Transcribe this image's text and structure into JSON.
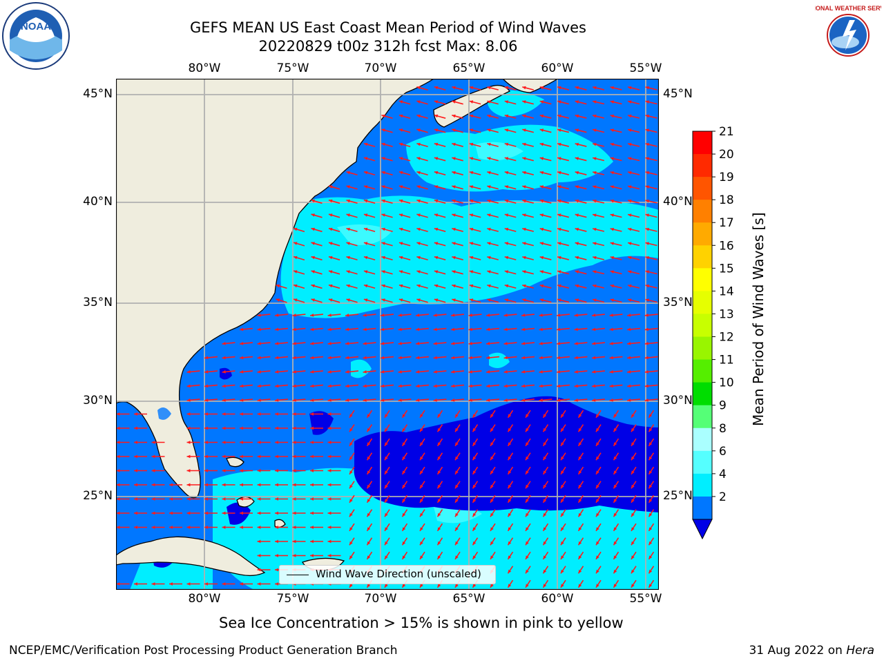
{
  "title": {
    "line1": "GEFS MEAN US East Coast Mean Period of Wind Waves",
    "line2": "20220829 t00z 312h fcst   Max: 8.06"
  },
  "map": {
    "lon_ticks_top": [
      "80°W",
      "75°W",
      "70°W",
      "65°W",
      "60°W",
      "55°W"
    ],
    "lon_ticks_bottom": [
      "80°W",
      "75°W",
      "70°W",
      "65°W",
      "60°W",
      "55°W"
    ],
    "lat_ticks_left": [
      "45°N",
      "40°N",
      "35°N",
      "30°N",
      "25°N"
    ],
    "lat_ticks_right": [
      "45°N",
      "40°N",
      "35°N",
      "30°N",
      "25°N"
    ],
    "extent": {
      "lon": [
        -85,
        -54.6
      ],
      "lat": [
        20.5,
        46.0
      ]
    },
    "land_color": "#efedde",
    "grid_color": "#b0b0b0",
    "arrow_color": "#ff1a1a",
    "legend_text": "Wind Wave Direction (unscaled)"
  },
  "colorbar": {
    "label": "Mean Period of Wind Waves [s]",
    "ticks": [
      "21",
      "20",
      "19",
      "18",
      "17",
      "16",
      "15",
      "14",
      "13",
      "12",
      "11",
      "10",
      "9",
      "8",
      "6",
      "4",
      "2"
    ],
    "bands_top_to_bottom": [
      "#ff0000",
      "#ff2a00",
      "#ff5500",
      "#ff8000",
      "#ffaa00",
      "#ffd200",
      "#ffff00",
      "#e6ff00",
      "#c8ff00",
      "#99f500",
      "#55ee00",
      "#00dd00",
      "#55ff77",
      "#aaffff",
      "#55ffff",
      "#00eeff",
      "#0077ff"
    ],
    "under_color": "#0000e6"
  },
  "field_colors": {
    "lt_2": "#0000e6",
    "2_4": "#0077ff",
    "4_6": "#00eeff",
    "6_8": "#55ffff",
    "8_9": "#aaffff"
  },
  "subtitle": "Sea Ice Concentration > 15% is shown in pink to yellow",
  "footer": {
    "left": "NCEP/EMC/Verification Post Processing Product Generation Branch",
    "right_date": "31 Aug 2022 on ",
    "right_machine": "Hera"
  },
  "logos": {
    "noaa_text": "NOAA",
    "nws_text": "NATIONAL WEATHER SERVICE"
  }
}
